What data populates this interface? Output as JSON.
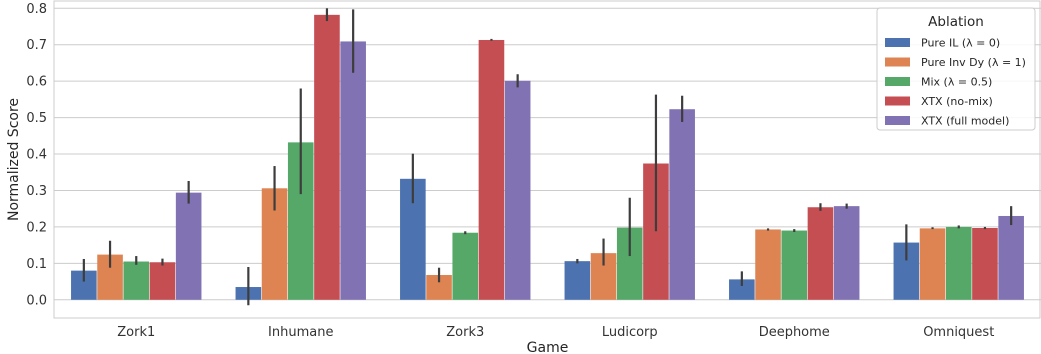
{
  "chart_data": {
    "type": "bar",
    "title": "",
    "xlabel": "Game",
    "ylabel": "Normalized Score",
    "ylim": [
      -0.05,
      0.82
    ],
    "yticks": [
      "0.0",
      "0.1",
      "0.2",
      "0.3",
      "0.4",
      "0.5",
      "0.6",
      "0.7",
      "0.8"
    ],
    "grid": "horizontal",
    "categories": [
      "Zork1",
      "Inhumane",
      "Zork3",
      "Ludicorp",
      "Deephome",
      "Omniquest"
    ],
    "legend": {
      "title": "Ablation",
      "placement": "top-right"
    },
    "series": [
      {
        "name": "Pure IL (λ = 0)",
        "color": "#4c72b0",
        "values": [
          0.08,
          0.035,
          0.332,
          0.106,
          0.056,
          0.157
        ],
        "error_low": [
          0.05,
          -0.015,
          0.265,
          0.1,
          0.038,
          0.108
        ],
        "error_high": [
          0.112,
          0.09,
          0.401,
          0.112,
          0.078,
          0.207
        ]
      },
      {
        "name": "Pure Inv Dy (λ = 1)",
        "color": "#dd8452",
        "values": [
          0.124,
          0.306,
          0.068,
          0.128,
          0.193,
          0.196
        ],
        "error_low": [
          0.088,
          0.245,
          0.048,
          0.094,
          0.19,
          0.194
        ],
        "error_high": [
          0.162,
          0.367,
          0.088,
          0.168,
          0.196,
          0.199
        ]
      },
      {
        "name": "Mix (λ = 0.5)",
        "color": "#55a868",
        "values": [
          0.105,
          0.432,
          0.184,
          0.198,
          0.19,
          0.2
        ],
        "error_low": [
          0.096,
          0.29,
          0.18,
          0.12,
          0.186,
          0.196
        ],
        "error_high": [
          0.12,
          0.58,
          0.188,
          0.28,
          0.194,
          0.204
        ]
      },
      {
        "name": "XTX (no-mix)",
        "color": "#c44e52",
        "values": [
          0.103,
          0.782,
          0.713,
          0.374,
          0.254,
          0.197
        ],
        "error_low": [
          0.094,
          0.765,
          0.711,
          0.188,
          0.244,
          0.194
        ],
        "error_high": [
          0.113,
          0.8,
          0.716,
          0.563,
          0.265,
          0.2
        ]
      },
      {
        "name": "XTX (full model)",
        "color": "#8172b3",
        "values": [
          0.294,
          0.709,
          0.601,
          0.523,
          0.257,
          0.23
        ],
        "error_low": [
          0.264,
          0.623,
          0.583,
          0.488,
          0.25,
          0.205
        ],
        "error_high": [
          0.326,
          0.797,
          0.619,
          0.56,
          0.264,
          0.257
        ]
      }
    ]
  }
}
